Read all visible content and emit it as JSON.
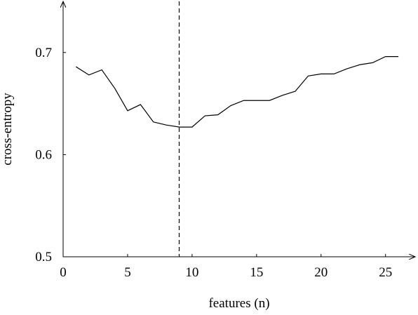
{
  "chart_data": {
    "type": "line",
    "xlabel": "features (n)",
    "ylabel": "cross-entropy",
    "x": [
      1,
      2,
      3,
      4,
      5,
      6,
      7,
      8,
      9,
      10,
      11,
      12,
      13,
      14,
      15,
      16,
      17,
      18,
      19,
      20,
      21,
      22,
      23,
      24,
      25,
      26
    ],
    "series": [
      {
        "color": "#000000",
        "values": [
          0.686,
          0.678,
          0.683,
          0.665,
          0.643,
          0.649,
          0.632,
          0.629,
          0.627,
          0.627,
          0.638,
          0.639,
          0.648,
          0.653,
          0.653,
          0.653,
          0.658,
          0.662,
          0.677,
          0.679,
          0.679,
          0.684,
          0.688,
          0.69,
          0.696,
          0.696
        ]
      }
    ],
    "vline": 9,
    "xlim": [
      0,
      27.3
    ],
    "ylim": [
      0.5,
      0.75
    ],
    "xticks": [
      0,
      5,
      10,
      15,
      20,
      25
    ],
    "yticks": [
      0.5,
      0.6,
      0.7
    ]
  }
}
